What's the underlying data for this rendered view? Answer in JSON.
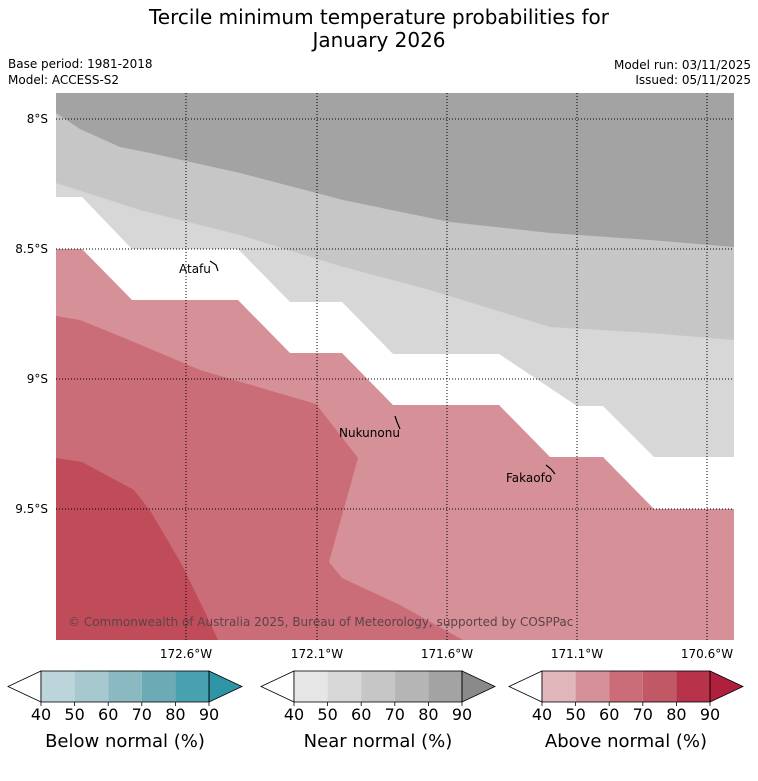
{
  "title_line1": "Tercile minimum temperature probabilities for",
  "title_line2": "January 2026",
  "base_period": "Base period: 1981-2018",
  "model": "Model: ACCESS-S2",
  "model_run": "Model run: 03/11/2025",
  "issued": "Issued: 05/11/2025",
  "map": {
    "lat_labels": [
      "8°S",
      "8.5°S",
      "9°S",
      "9.5°S"
    ],
    "lon_labels": [
      "172.6°W",
      "172.1°W",
      "171.6°W",
      "171.1°W",
      "170.6°W"
    ],
    "places": [
      "Atafu",
      "Nukunonu",
      "Fakaofo"
    ],
    "copyright": "© Commonwealth of Australia 2025, Bureau of Meteorology, supported by COSPPac"
  },
  "colorbars": [
    {
      "title": "Below normal (%)",
      "ticks": [
        "40",
        "50",
        "60",
        "70",
        "80",
        "90"
      ],
      "colors": [
        "#ffffff",
        "#bcd5da",
        "#a6c8ce",
        "#8bb9c2",
        "#6caab6",
        "#49a0ae",
        "#2d95a6"
      ]
    },
    {
      "title": "Near normal (%)",
      "ticks": [
        "40",
        "50",
        "60",
        "70",
        "80",
        "90"
      ],
      "colors": [
        "#ffffff",
        "#e6e6e6",
        "#d7d7d7",
        "#c6c6c6",
        "#b5b5b5",
        "#a3a3a3",
        "#8a8a8a"
      ]
    },
    {
      "title": "Above normal (%)",
      "ticks": [
        "40",
        "50",
        "60",
        "70",
        "80",
        "90"
      ],
      "colors": [
        "#ffffff",
        "#e1b6bb",
        "#d69097",
        "#cb6d78",
        "#c15865",
        "#b83249",
        "#b0203e"
      ]
    }
  ]
}
